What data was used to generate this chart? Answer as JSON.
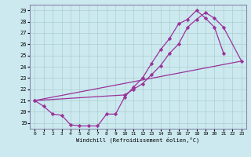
{
  "xlabel": "Windchill (Refroidissement éolien,°C)",
  "xlim": [
    -0.5,
    23.5
  ],
  "ylim": [
    18.5,
    29.5
  ],
  "yticks": [
    19,
    20,
    21,
    22,
    23,
    24,
    25,
    26,
    27,
    28,
    29
  ],
  "xticks": [
    0,
    1,
    2,
    3,
    4,
    5,
    6,
    7,
    8,
    9,
    10,
    11,
    12,
    13,
    14,
    15,
    16,
    17,
    18,
    19,
    20,
    21,
    22,
    23
  ],
  "bg_color": "#cce9f0",
  "grid_color": "#aacfcc",
  "line_color": "#993399",
  "line1_x": [
    0,
    1,
    2,
    3,
    4,
    5,
    6,
    7,
    8,
    9,
    10,
    11,
    12,
    13,
    14,
    15,
    16,
    17,
    18,
    19,
    20,
    21
  ],
  "line1_y": [
    21.0,
    20.5,
    19.8,
    19.7,
    18.85,
    18.75,
    18.75,
    18.75,
    19.8,
    19.8,
    21.3,
    22.2,
    23.0,
    24.3,
    25.5,
    26.5,
    27.8,
    28.2,
    29.0,
    28.3,
    27.5,
    25.2
  ],
  "line2_x": [
    0,
    23
  ],
  "line2_y": [
    21.0,
    24.5
  ],
  "line3_x": [
    0,
    10,
    11,
    12,
    13,
    14,
    15,
    16,
    17,
    18,
    19,
    20,
    21,
    23
  ],
  "line3_y": [
    21.0,
    21.5,
    22.0,
    22.5,
    23.3,
    24.1,
    25.2,
    26.0,
    27.5,
    28.2,
    28.8,
    28.3,
    27.5,
    24.5
  ]
}
